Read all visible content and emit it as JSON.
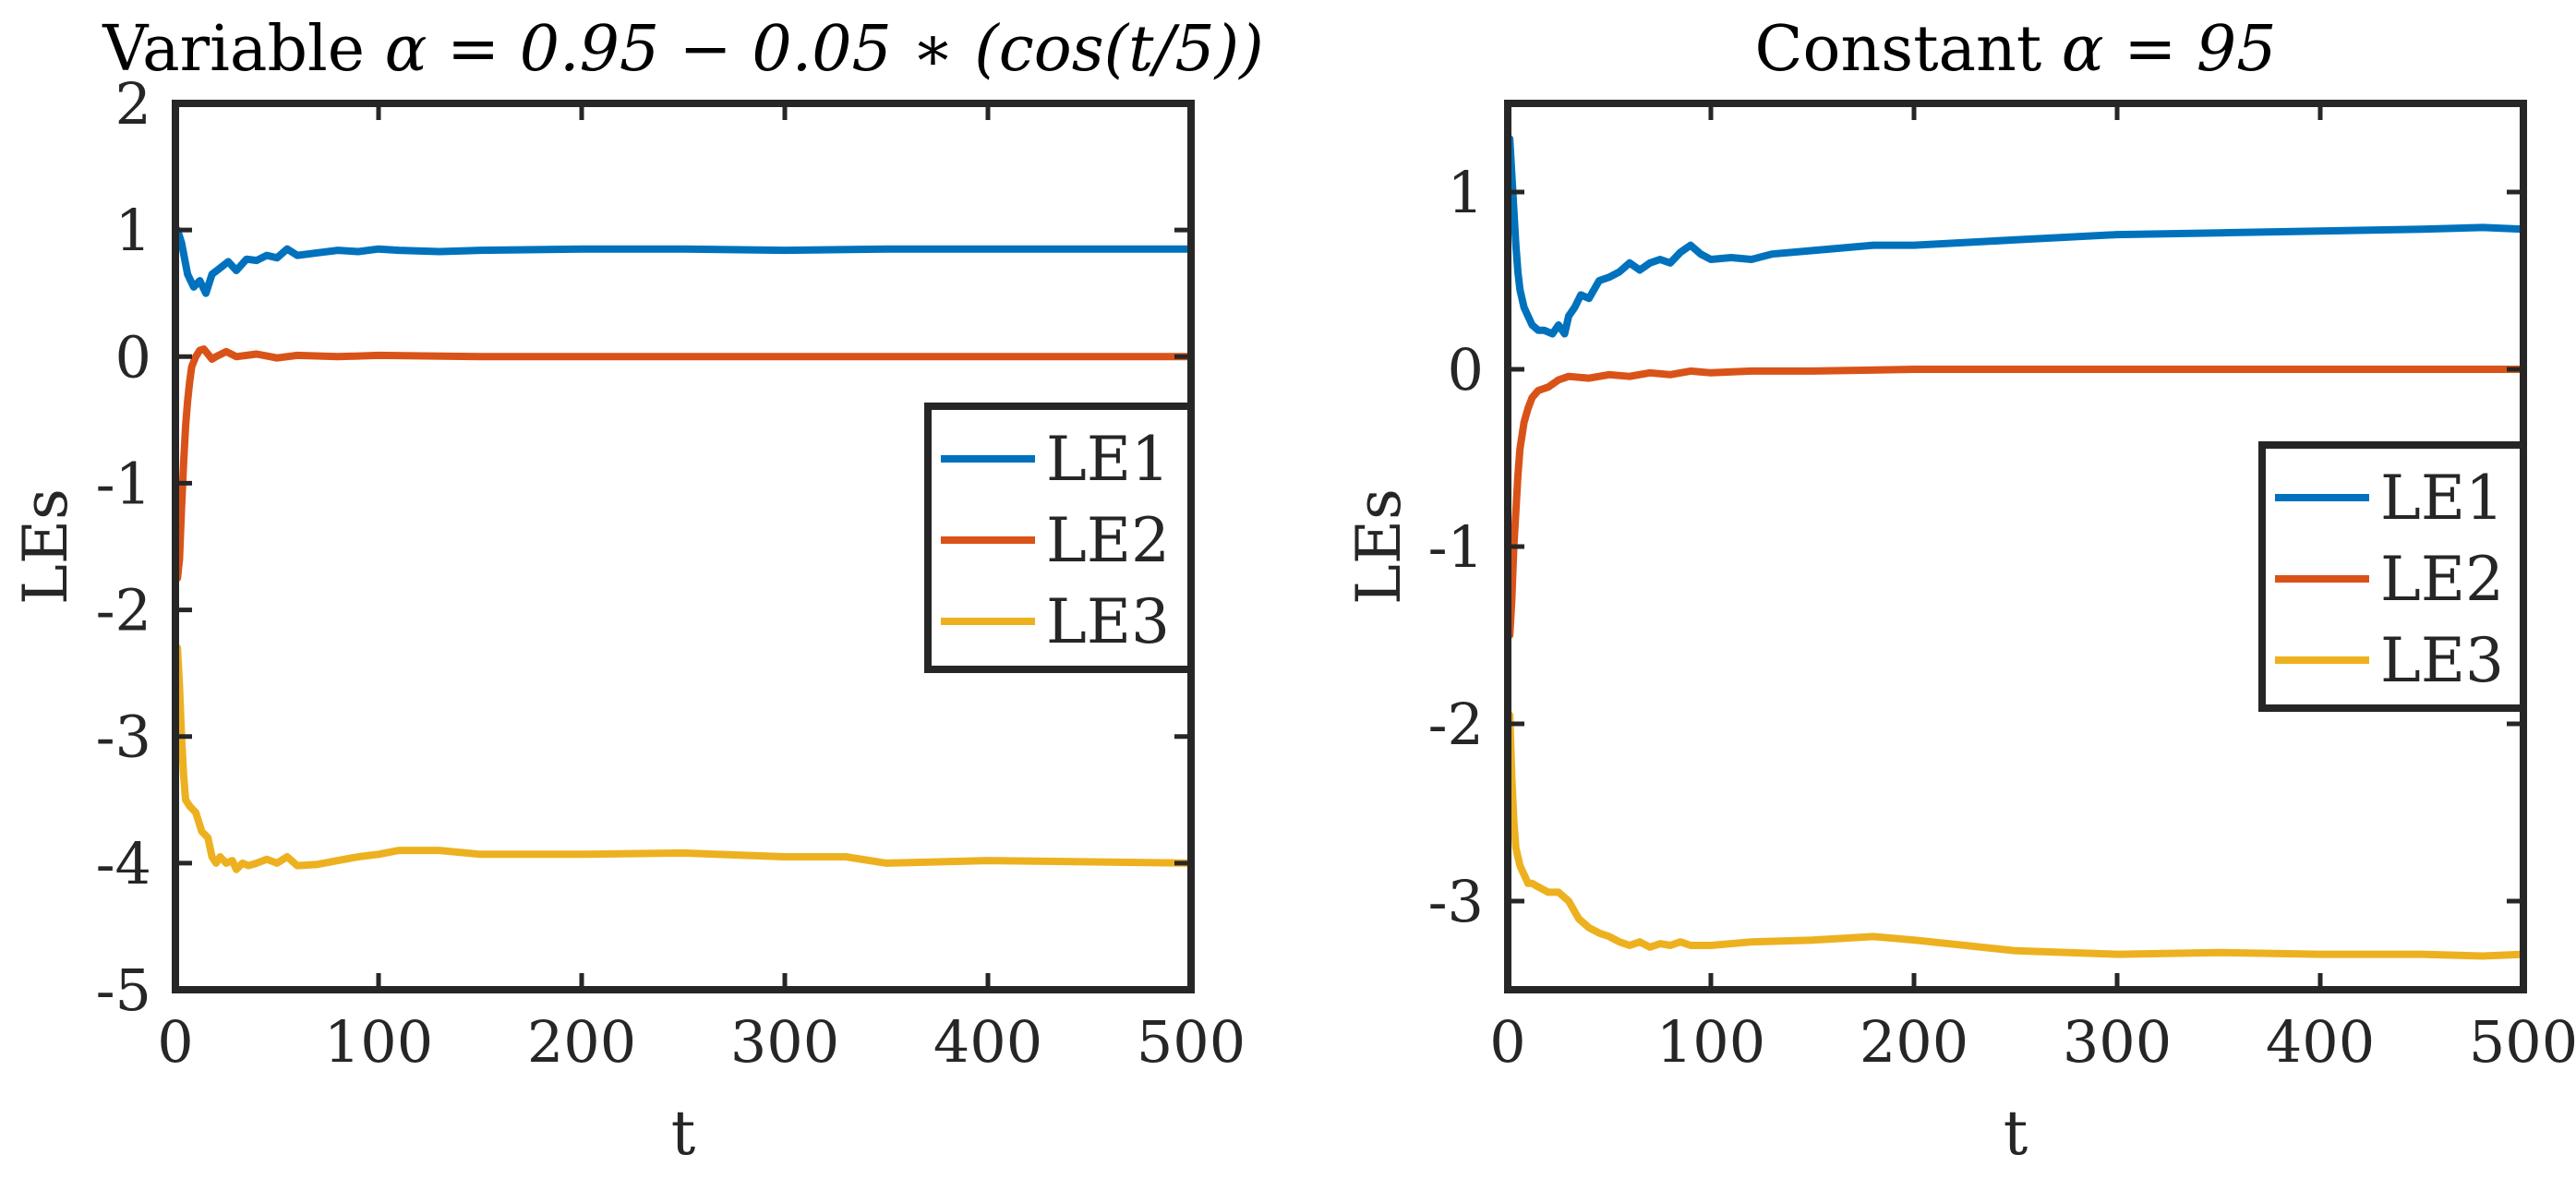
{
  "colors": {
    "LE1": "#0072BD",
    "LE2": "#D95319",
    "LE3": "#EDB120",
    "axis": "#262626",
    "background": "#ffffff"
  },
  "chart_data": [
    {
      "type": "line",
      "title_prefix": "Variable ",
      "title_math": "α = 0.95 − 0.05 ∗ (cos(t/5))",
      "xlabel": "t",
      "ylabel": "LEs",
      "xlim": [
        0,
        500
      ],
      "ylim": [
        -5,
        2
      ],
      "xticks": [
        0,
        100,
        200,
        300,
        400,
        500
      ],
      "yticks": [
        -5,
        -4,
        -3,
        -2,
        -1,
        0,
        1,
        2
      ],
      "legend_position": "center-right",
      "series": [
        {
          "name": "LE1",
          "x": [
            1,
            3,
            6,
            9,
            12,
            15,
            18,
            22,
            26,
            30,
            35,
            40,
            45,
            50,
            55,
            60,
            70,
            80,
            90,
            100,
            110,
            130,
            150,
            200,
            250,
            300,
            350,
            400,
            450,
            500
          ],
          "y": [
            1.0,
            0.9,
            0.65,
            0.55,
            0.6,
            0.5,
            0.65,
            0.7,
            0.75,
            0.68,
            0.77,
            0.76,
            0.8,
            0.78,
            0.85,
            0.8,
            0.82,
            0.84,
            0.83,
            0.85,
            0.84,
            0.83,
            0.84,
            0.85,
            0.85,
            0.84,
            0.85,
            0.85,
            0.85,
            0.85
          ]
        },
        {
          "name": "LE2",
          "x": [
            1,
            2,
            3,
            4,
            5,
            6,
            7,
            8,
            10,
            12,
            14,
            16,
            18,
            20,
            25,
            30,
            40,
            50,
            60,
            80,
            100,
            150,
            200,
            250,
            300,
            400,
            500
          ],
          "y": [
            -1.75,
            -1.6,
            -1.2,
            -0.85,
            -0.55,
            -0.35,
            -0.2,
            -0.08,
            0.0,
            0.05,
            0.06,
            0.02,
            -0.02,
            0.0,
            0.04,
            0.0,
            0.02,
            -0.01,
            0.01,
            0.0,
            0.01,
            0.0,
            0.0,
            0.0,
            0.0,
            0.0,
            0.0
          ]
        },
        {
          "name": "LE3",
          "x": [
            1,
            2,
            3,
            4,
            5,
            7,
            10,
            13,
            16,
            18,
            20,
            22,
            25,
            28,
            30,
            33,
            36,
            40,
            45,
            50,
            55,
            60,
            70,
            80,
            90,
            100,
            110,
            130,
            150,
            200,
            250,
            300,
            330,
            350,
            400,
            450,
            500
          ],
          "y": [
            -2.3,
            -2.6,
            -3.0,
            -3.3,
            -3.5,
            -3.55,
            -3.6,
            -3.75,
            -3.8,
            -3.95,
            -4.0,
            -3.95,
            -4.0,
            -3.98,
            -4.05,
            -4.0,
            -4.02,
            -4.0,
            -3.97,
            -4.0,
            -3.95,
            -4.02,
            -4.01,
            -3.98,
            -3.95,
            -3.93,
            -3.9,
            -3.9,
            -3.93,
            -3.93,
            -3.92,
            -3.95,
            -3.95,
            -4.0,
            -3.98,
            -3.99,
            -4.0
          ]
        }
      ],
      "legend": [
        "LE1",
        "LE2",
        "LE3"
      ]
    },
    {
      "type": "line",
      "title_prefix": "Constant ",
      "title_math": "α = 95",
      "xlabel": "t",
      "ylabel": "LEs",
      "xlim": [
        0,
        500
      ],
      "ylim": [
        -3.5,
        1.5
      ],
      "xticks": [
        0,
        100,
        200,
        300,
        400,
        500
      ],
      "yticks": [
        -3,
        -2,
        -1,
        0,
        1
      ],
      "legend_position": "center-right",
      "series": [
        {
          "name": "LE1",
          "x": [
            1,
            2,
            3,
            4,
            5,
            6,
            8,
            10,
            12,
            15,
            18,
            22,
            25,
            28,
            30,
            33,
            36,
            40,
            45,
            50,
            55,
            60,
            65,
            70,
            75,
            80,
            85,
            90,
            95,
            100,
            110,
            120,
            130,
            150,
            180,
            200,
            250,
            300,
            350,
            400,
            450,
            480,
            500
          ],
          "y": [
            1.3,
            1.1,
            0.9,
            0.7,
            0.55,
            0.45,
            0.35,
            0.3,
            0.25,
            0.22,
            0.22,
            0.2,
            0.25,
            0.2,
            0.3,
            0.35,
            0.42,
            0.4,
            0.5,
            0.52,
            0.55,
            0.6,
            0.56,
            0.6,
            0.62,
            0.6,
            0.66,
            0.7,
            0.65,
            0.62,
            0.63,
            0.62,
            0.65,
            0.67,
            0.7,
            0.7,
            0.73,
            0.76,
            0.77,
            0.78,
            0.79,
            0.8,
            0.79
          ]
        },
        {
          "name": "LE2",
          "x": [
            1,
            2,
            3,
            4,
            5,
            6,
            8,
            10,
            12,
            15,
            20,
            25,
            30,
            40,
            50,
            60,
            70,
            80,
            90,
            100,
            120,
            150,
            200,
            250,
            300,
            350,
            400,
            450,
            500
          ],
          "y": [
            -1.5,
            -1.3,
            -1.0,
            -0.8,
            -0.6,
            -0.45,
            -0.3,
            -0.22,
            -0.16,
            -0.12,
            -0.1,
            -0.06,
            -0.04,
            -0.05,
            -0.03,
            -0.04,
            -0.02,
            -0.03,
            -0.01,
            -0.02,
            -0.01,
            -0.01,
            0.0,
            0.0,
            0.0,
            0.0,
            0.0,
            0.0,
            0.0
          ]
        },
        {
          "name": "LE3",
          "x": [
            1,
            2,
            3,
            4,
            5,
            6,
            8,
            10,
            12,
            15,
            20,
            25,
            30,
            35,
            40,
            45,
            50,
            55,
            60,
            65,
            70,
            75,
            80,
            85,
            90,
            100,
            120,
            150,
            180,
            200,
            250,
            300,
            350,
            400,
            450,
            480,
            500
          ],
          "y": [
            -1.95,
            -2.3,
            -2.55,
            -2.7,
            -2.75,
            -2.8,
            -2.85,
            -2.9,
            -2.9,
            -2.92,
            -2.95,
            -2.95,
            -3.0,
            -3.1,
            -3.15,
            -3.18,
            -3.2,
            -3.23,
            -3.25,
            -3.23,
            -3.26,
            -3.24,
            -3.25,
            -3.23,
            -3.25,
            -3.25,
            -3.23,
            -3.22,
            -3.2,
            -3.22,
            -3.28,
            -3.3,
            -3.29,
            -3.3,
            -3.3,
            -3.31,
            -3.3
          ]
        }
      ],
      "legend": [
        "LE1",
        "LE2",
        "LE3"
      ]
    }
  ]
}
